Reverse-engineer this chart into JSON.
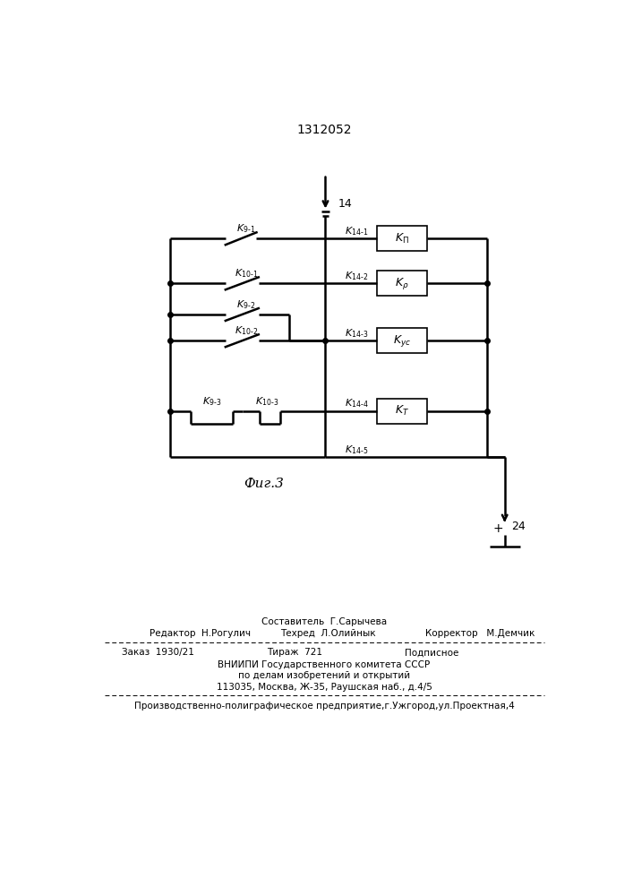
{
  "title": "1312052",
  "fig_label": "Фиг.3",
  "bg_color": "#ffffff",
  "line_color": "#000000",
  "footer_sestavitel": "Составитель  Г.Сарычева",
  "footer_editor": "Редактор  Н.Рогулич",
  "footer_tehred": "Техред  Л.Олийнык",
  "footer_korrektor": "Корректор   М.Демчик",
  "footer_zakaz": "Заказ  1930/21",
  "footer_tirazh": "Тираж  721",
  "footer_podpisnoe": "Подписное",
  "footer_vniip1": "ВНИИПИ Государственного комитета СССР",
  "footer_vniip2": "по делам изобретений и открытий",
  "footer_vniip3": "113035, Москва, Ж-35, Раушская наб., д.4/5",
  "footer_prod": "Производственно-полиграфическое предприятие,г.Ужгород,ул.Проектная,4"
}
